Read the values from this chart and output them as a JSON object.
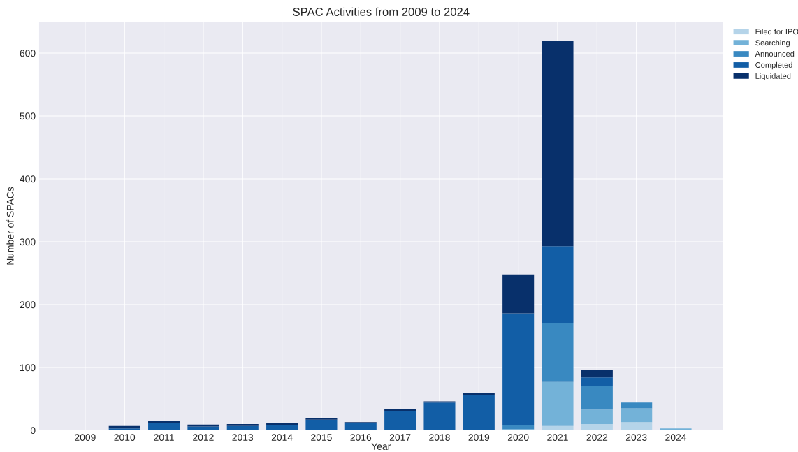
{
  "chart_data": {
    "type": "bar",
    "title": "SPAC Activities from 2009 to 2024",
    "xlabel": "Year",
    "ylabel": "Number of SPACs",
    "stacked": true,
    "categories": [
      "2009",
      "2010",
      "2011",
      "2012",
      "2013",
      "2014",
      "2015",
      "2016",
      "2017",
      "2018",
      "2019",
      "2020",
      "2021",
      "2022",
      "2023",
      "2024"
    ],
    "series": [
      {
        "name": "Filed for IPO",
        "color": "#b5d4e9",
        "values": [
          0,
          0,
          0,
          0,
          0,
          0,
          0,
          0,
          0,
          0,
          0,
          0,
          7,
          10,
          13,
          0
        ]
      },
      {
        "name": "Searching",
        "color": "#73b2d8",
        "values": [
          0,
          0,
          0,
          0,
          0,
          0,
          0,
          0,
          0,
          0,
          0,
          2,
          70,
          23,
          22,
          3
        ]
      },
      {
        "name": "Announced",
        "color": "#3989c1",
        "values": [
          0,
          0,
          0,
          0,
          0,
          0,
          0,
          0,
          0,
          0,
          0,
          6,
          93,
          37,
          9,
          0
        ]
      },
      {
        "name": "Completed",
        "color": "#125ea6",
        "values": [
          1,
          3,
          12,
          6,
          7,
          8,
          17,
          12,
          30,
          44,
          56,
          178,
          123,
          14,
          0,
          0
        ]
      },
      {
        "name": "Liquidated",
        "color": "#08306b",
        "values": [
          0,
          4,
          3,
          3,
          3,
          4,
          3,
          1,
          4,
          2,
          3,
          62,
          326,
          12,
          0,
          0
        ]
      }
    ],
    "ylim": [
      0,
      650
    ],
    "yticks": [
      0,
      100,
      200,
      300,
      400,
      500,
      600
    ],
    "grid": true,
    "legend": "top right"
  }
}
